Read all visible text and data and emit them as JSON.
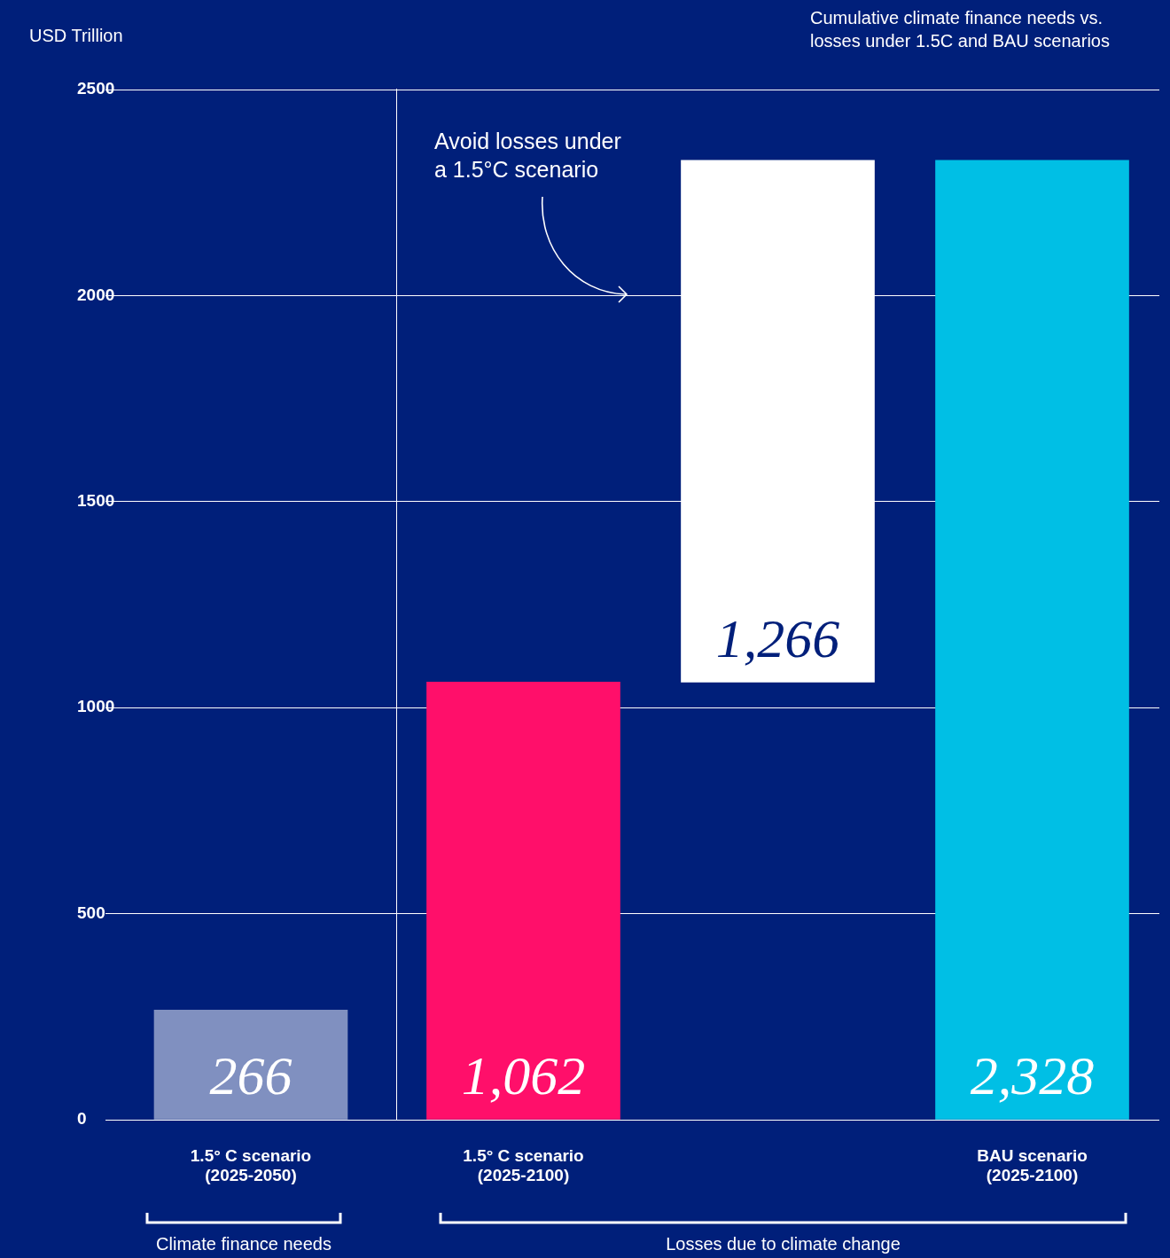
{
  "chart_data": [
    {
      "type": "bar",
      "ylabel": "USD Trillion",
      "categories": [
        "1.5° C scenario\n(2025-2050)"
      ],
      "values": [
        266
      ],
      "colors": [
        "#8090c0"
      ],
      "value_labels": [
        "266"
      ],
      "ylim": [
        0,
        2500
      ],
      "yticks": [
        0,
        500,
        1000,
        1500,
        2000,
        2500
      ],
      "grid": "y",
      "legend": false,
      "annotations": [
        "Climate finance needs"
      ]
    },
    {
      "type": "bar",
      "title": "Cumulative climate finance needs vs. losses under 1.5C and BAU scenarios",
      "categories": [
        "1.5° C scenario\n(2025-2100)",
        null,
        "BAU scenario\n(2025-2100)"
      ],
      "values": [
        1062,
        1266,
        2328
      ],
      "base": [
        0,
        1062,
        0
      ],
      "colors": [
        "#ff0f6a",
        "#ffffff",
        "#00bfe5"
      ],
      "value_labels": [
        "1,062",
        "1,266",
        "2,328"
      ],
      "ylim": [
        0,
        2500
      ],
      "yticks": [
        0,
        500,
        1000,
        1500,
        2000,
        2500
      ],
      "grid": "y",
      "legend": false,
      "tick_labels": "x",
      "annotations": [
        "Avoid losses under\na 1.5°C scenario",
        "Losses due to climate change"
      ]
    }
  ]
}
